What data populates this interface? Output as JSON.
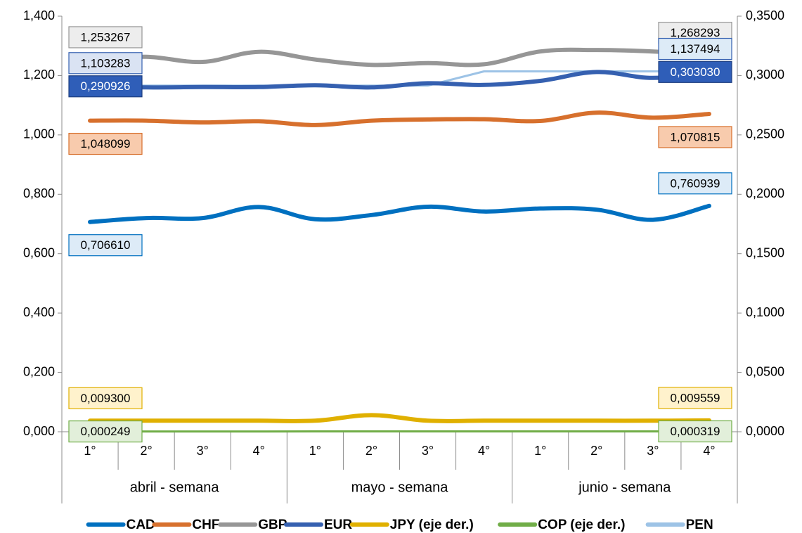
{
  "chart_data": {
    "type": "line",
    "title": "",
    "xlabel": "",
    "ylabel": "",
    "groups": [
      "abril - semana",
      "mayo - semana",
      "junio - semana"
    ],
    "categories": [
      "1°",
      "2°",
      "3°",
      "4°",
      "1°",
      "2°",
      "3°",
      "4°",
      "1°",
      "2°",
      "3°",
      "4°"
    ],
    "y_left": {
      "range": [
        0,
        1.4
      ],
      "ticks": [
        0,
        0.2,
        0.4,
        0.6,
        0.8,
        1.0,
        1.2,
        1.4
      ],
      "tick_labels": [
        "0,000",
        "0,200",
        "0,400",
        "0,600",
        "0,800",
        "1,000",
        "1,200",
        "1,400"
      ]
    },
    "y_right": {
      "range": [
        0,
        0.35
      ],
      "ticks": [
        0,
        0.05,
        0.1,
        0.15,
        0.2,
        0.25,
        0.3,
        0.35
      ],
      "tick_labels": [
        "0,0000",
        "0,0500",
        "0,1000",
        "0,1500",
        "0,2000",
        "0,2500",
        "0,3000",
        "0,3500"
      ]
    },
    "grid": false,
    "legend_position": "bottom",
    "series": [
      {
        "name": "CAD",
        "axis": "left",
        "color": "#0070C0",
        "width": 6,
        "smooth": true,
        "values": [
          0.70661,
          0.72,
          0.72,
          0.757,
          0.716,
          0.73,
          0.758,
          0.742,
          0.752,
          0.748,
          0.714,
          0.760939
        ],
        "labels": [
          {
            "index": 0,
            "text": "0,706610",
            "fill": "#DDEBF7",
            "stroke": "#0070C0",
            "text_color": "#000000",
            "pos": "below"
          },
          {
            "index": 11,
            "text": "0,760939",
            "fill": "#DDEBF7",
            "stroke": "#0070C0",
            "text_color": "#000000",
            "pos": "above"
          }
        ]
      },
      {
        "name": "CHF",
        "axis": "left",
        "color": "#D7702D",
        "width": 6,
        "smooth": true,
        "values": [
          1.048099,
          1.048,
          1.042,
          1.046,
          1.033,
          1.048,
          1.052,
          1.053,
          1.047,
          1.075,
          1.058,
          1.070815
        ],
        "labels": [
          {
            "index": 0,
            "text": "1,048099",
            "fill": "#F8CBAD",
            "stroke": "#D7702D",
            "text_color": "#000000",
            "pos": "below"
          },
          {
            "index": 11,
            "text": "1,070815",
            "fill": "#F8CBAD",
            "stroke": "#D7702D",
            "text_color": "#000000",
            "pos": "below"
          }
        ]
      },
      {
        "name": "GBP",
        "axis": "left",
        "color": "#969696",
        "width": 6,
        "smooth": true,
        "values": [
          1.253267,
          1.263,
          1.246,
          1.28,
          1.254,
          1.236,
          1.242,
          1.238,
          1.281,
          1.286,
          1.281,
          1.268293
        ],
        "labels": [
          {
            "index": 0,
            "text": "1,253267",
            "fill": "#EDEDED",
            "stroke": "#969696",
            "text_color": "#000000",
            "pos": "above"
          },
          {
            "index": 11,
            "text": "1,268293",
            "fill": "#EDEDED",
            "stroke": "#969696",
            "text_color": "#000000",
            "pos": "above"
          }
        ]
      },
      {
        "name": "EUR",
        "axis": "right",
        "color": "#3560B0",
        "width": 6,
        "smooth": true,
        "values": [
          0.290926,
          0.29,
          0.2903,
          0.2903,
          0.2918,
          0.29,
          0.2935,
          0.2921,
          0.2955,
          0.303,
          0.298,
          0.30303
        ],
        "labels": [
          {
            "index": 0,
            "text": "0,290926",
            "fill": "#2F5EB8",
            "stroke": "#1F3F80",
            "text_color": "#FFFFFF",
            "pos": "inline"
          },
          {
            "index": 11,
            "text": "0,303030",
            "fill": "#2F5EB8",
            "stroke": "#1F3F80",
            "text_color": "#FFFFFF",
            "pos": "inline"
          }
        ]
      },
      {
        "name": "JPY (eje der.)",
        "axis": "right",
        "color": "#E0B000",
        "width": 6,
        "smooth": true,
        "values": [
          0.0093,
          0.0093,
          0.0093,
          0.0093,
          0.0093,
          0.014,
          0.0093,
          0.0093,
          0.0093,
          0.0093,
          0.0093,
          0.009559
        ],
        "labels": [
          {
            "index": 0,
            "text": "0,009300",
            "fill": "#FFF2CC",
            "stroke": "#E0B000",
            "text_color": "#000000",
            "pos": "above"
          },
          {
            "index": 11,
            "text": "0,009559",
            "fill": "#FFF2CC",
            "stroke": "#E0B000",
            "text_color": "#000000",
            "pos": "above"
          }
        ]
      },
      {
        "name": "COP (eje der.)",
        "axis": "right",
        "color": "#70AD47",
        "width": 3,
        "smooth": false,
        "values": [
          0.000249,
          0.00025,
          0.00025,
          0.00025,
          0.00027,
          0.00027,
          0.00028,
          0.00028,
          0.0003,
          0.0003,
          0.00031,
          0.000319
        ],
        "labels": [
          {
            "index": 0,
            "text": "0,000249",
            "fill": "#E2EFDA",
            "stroke": "#70AD47",
            "text_color": "#000000",
            "pos": "inline"
          },
          {
            "index": 11,
            "text": "0,000319",
            "fill": "#E2EFDA",
            "stroke": "#70AD47",
            "text_color": "#000000",
            "pos": "inline"
          }
        ]
      },
      {
        "name": "PEN",
        "axis": "right",
        "color": "#9DC3E6",
        "width": 3,
        "smooth": false,
        "values": [
          0.2915,
          0.2915,
          0.2915,
          0.2915,
          0.2915,
          0.2915,
          0.2915,
          0.3035,
          0.3035,
          0.3035,
          0.3035,
          0.3035
        ],
        "labels": []
      }
    ],
    "extra_labels": [
      {
        "anchor_series": "PEN",
        "index": 0,
        "text": "1,103283",
        "fill": "#DAE3F3",
        "stroke": "#3560B0",
        "text_color": "#000000",
        "pos": "above"
      },
      {
        "anchor_series": "PEN",
        "index": 11,
        "text": "1,137494",
        "fill": "#DDEBF7",
        "stroke": "#3560B0",
        "text_color": "#000000",
        "pos": "above"
      }
    ]
  }
}
